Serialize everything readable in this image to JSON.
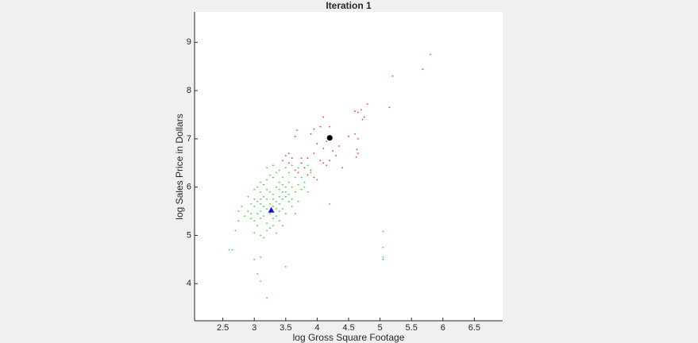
{
  "chart_data": {
    "type": "scatter",
    "title": "Iteration 1",
    "x_label": "log Gross Square Footage",
    "y_label": "log Sales Price in Dollars",
    "xlim": [
      2.05,
      6.95
    ],
    "ylim": [
      3.23,
      9.63
    ],
    "xticks": [
      2.5,
      3,
      3.5,
      4,
      4.5,
      5,
      5.5,
      6,
      6.5
    ],
    "yticks": [
      4,
      5,
      6,
      7,
      8,
      9
    ],
    "grid": false,
    "series": [
      {
        "color": "#ff3030",
        "marker": "dot",
        "x": [
          5.8,
          5.68,
          5.2,
          5.15,
          4.8,
          4.7,
          4.65,
          4.75,
          4.6,
          4.72,
          4.5,
          4.65,
          4.6,
          4.63,
          4.65,
          4.62,
          4.35,
          4.4,
          4.1,
          4.05,
          3.95,
          3.68,
          3.9,
          4.2,
          4.15,
          4.25,
          4.1,
          4.0,
          3.95,
          3.85,
          4.05,
          4.1,
          4.15,
          4.2,
          3.75,
          3.8,
          3.7,
          3.65,
          3.6,
          3.55,
          3.5,
          3.45,
          3.9,
          3.95,
          4.0,
          3.85,
          3.75,
          3.65,
          4.3,
          3.55
        ],
        "values": [
          8.75,
          8.44,
          8.3,
          7.65,
          7.72,
          7.6,
          7.55,
          7.45,
          7.57,
          7.4,
          7.05,
          7.0,
          7.1,
          6.78,
          6.7,
          6.62,
          6.85,
          6.4,
          7.45,
          7.25,
          7.2,
          7.18,
          7.1,
          7.25,
          6.95,
          6.75,
          6.8,
          6.9,
          6.7,
          6.6,
          6.55,
          6.5,
          6.45,
          6.55,
          6.5,
          6.4,
          6.3,
          6.35,
          6.6,
          6.5,
          6.65,
          6.55,
          6.35,
          6.2,
          6.15,
          6.25,
          6.6,
          7.05,
          6.65,
          6.7
        ]
      },
      {
        "color": "#22e022",
        "marker": "dot",
        "x": [
          3.0,
          3.05,
          3.1,
          3.15,
          3.2,
          3.25,
          3.3,
          3.35,
          3.4,
          3.45,
          3.5,
          3.55,
          3.6,
          3.1,
          3.15,
          3.2,
          3.25,
          3.3,
          3.35,
          3.4,
          3.45,
          3.5,
          3.55,
          3.6,
          3.65,
          3.7,
          3.75,
          3.8,
          3.0,
          3.05,
          3.1,
          3.2,
          3.25,
          3.3,
          3.35,
          3.4,
          3.45,
          2.9,
          2.95,
          2.85,
          2.9,
          3.0,
          3.05,
          3.1,
          3.15,
          3.2,
          3.25,
          3.3,
          3.35,
          3.4,
          3.5,
          3.45,
          3.55,
          3.6,
          3.65,
          3.7,
          3.3,
          3.2,
          3.1,
          3.2,
          3.4,
          3.45,
          3.3,
          3.35,
          3.25,
          3.15,
          3.05,
          2.95,
          3.0,
          3.1,
          3.4,
          3.5,
          3.55,
          3.6,
          3.5,
          3.4,
          3.3,
          3.2,
          3.1,
          3.0,
          3.15,
          3.35,
          3.45,
          3.75,
          3.85,
          3.8,
          2.8,
          2.75,
          3.65,
          3.7,
          3.9,
          3.85,
          2.6,
          2.65,
          3.0,
          3.1,
          3.05,
          3.1,
          3.2,
          3.5,
          5.05,
          5.05,
          5.05,
          5.05,
          2.7,
          4.2,
          2.75,
          2.95
        ],
        "values": [
          5.6,
          5.7,
          5.65,
          5.8,
          5.75,
          5.9,
          5.85,
          6.0,
          5.95,
          6.05,
          5.9,
          6.1,
          6.0,
          5.5,
          5.4,
          5.55,
          5.45,
          5.6,
          5.7,
          5.65,
          5.75,
          5.8,
          5.85,
          5.75,
          5.9,
          6.05,
          6.2,
          6.1,
          5.3,
          5.2,
          5.35,
          5.25,
          5.15,
          5.35,
          5.4,
          5.5,
          5.55,
          5.5,
          5.65,
          5.4,
          5.8,
          5.95,
          6.0,
          6.1,
          6.05,
          6.15,
          6.25,
          6.2,
          6.3,
          6.35,
          6.4,
          6.2,
          6.3,
          6.45,
          6.2,
          6.4,
          6.45,
          6.4,
          5.9,
          5.95,
          5.8,
          5.9,
          5.75,
          5.55,
          5.65,
          5.6,
          5.45,
          5.35,
          5.75,
          5.75,
          6.1,
          6.0,
          5.7,
          5.6,
          5.45,
          5.3,
          5.2,
          5.1,
          5.0,
          5.05,
          4.95,
          5.05,
          5.2,
          5.95,
          5.9,
          6.0,
          5.6,
          5.5,
          5.45,
          5.7,
          6.3,
          6.45,
          4.7,
          4.7,
          4.5,
          4.55,
          4.2,
          4.05,
          3.7,
          4.35,
          4.55,
          4.5,
          4.75,
          5.08,
          5.1,
          5.65,
          5.3,
          5.45
        ]
      },
      {
        "color": "#000000",
        "marker": "circle",
        "x": [
          4.2
        ],
        "values": [
          7.02
        ]
      },
      {
        "color": "#1010d0",
        "marker": "triangle",
        "x": [
          3.27
        ],
        "values": [
          5.52
        ]
      }
    ]
  }
}
